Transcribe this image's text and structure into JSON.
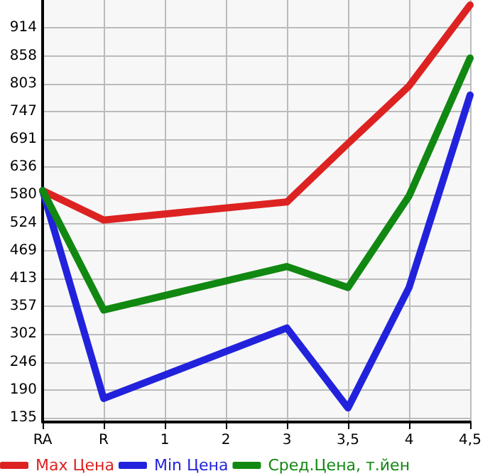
{
  "chart_data": {
    "type": "line",
    "categories": [
      "RA",
      "R",
      "1",
      "2",
      "3",
      "3,5",
      "4",
      "4,5"
    ],
    "series": [
      {
        "name": "Max Цена",
        "color": "#dd2222",
        "values": [
          589,
          530,
          null,
          null,
          566,
          683,
          798,
          960
        ]
      },
      {
        "name": "Min Цена",
        "color": "#2222dd",
        "values": [
          589,
          173,
          null,
          null,
          314,
          154,
          395,
          780
        ]
      },
      {
        "name": "Сред.Цена, т.йен",
        "color": "#118811",
        "values": [
          589,
          350,
          null,
          null,
          437,
          395,
          578,
          854
        ]
      }
    ],
    "ylim": [
      126,
      970
    ],
    "yticks": [
      135,
      190,
      246,
      302,
      357,
      413,
      469,
      524,
      580,
      636,
      691,
      747,
      803,
      858,
      914
    ],
    "grid": true,
    "legend": "bottom",
    "marker": "none",
    "line_style": "solid"
  }
}
